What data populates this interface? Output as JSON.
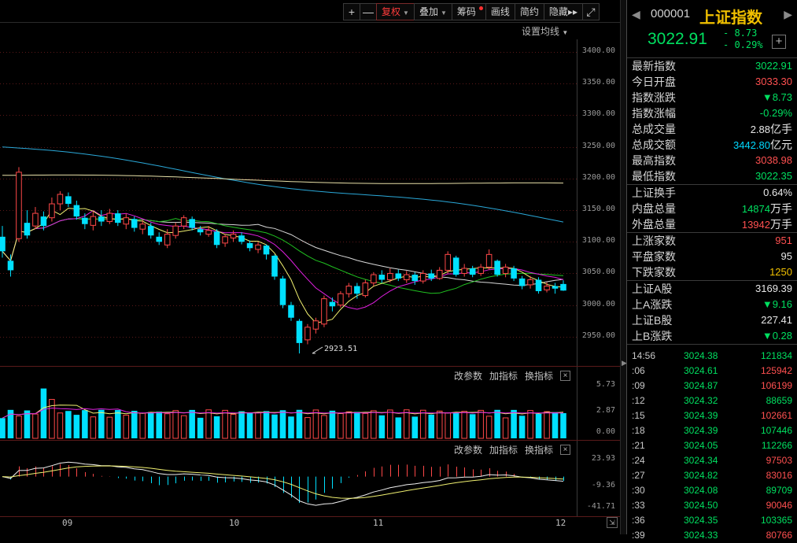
{
  "toolbar": {
    "buttons": [
      {
        "label": "+"
      },
      {
        "label": "—"
      },
      {
        "label": "复权",
        "active": true,
        "caret": true
      },
      {
        "label": "叠加",
        "caret": true
      },
      {
        "label": "筹码",
        "dot": true
      },
      {
        "label": "画线"
      },
      {
        "label": "简约"
      },
      {
        "label": "隐藏",
        "suffix": "▸▸"
      },
      {
        "label": "⤢"
      }
    ]
  },
  "ma_setting_label": "设置均线",
  "panel_tools": {
    "params": "改参数",
    "add_indicator": "加指标",
    "switch_indicator": "换指标",
    "close": "×"
  },
  "price_axis": [
    "3400.00",
    "3350.00",
    "3300.00",
    "3250.00",
    "3200.00",
    "3150.00",
    "3100.00",
    "3050.00",
    "3000.00",
    "2950.00"
  ],
  "volume_axis": [
    "5.73",
    "2.87",
    "0.00"
  ],
  "macd_axis": [
    "23.93",
    "-9.36",
    "-41.71"
  ],
  "x_axis": [
    "09",
    "10",
    "11",
    "12"
  ],
  "low_marker": "2923.51",
  "colors": {
    "up": "#ff4848",
    "down": "#00e0ff",
    "bg": "#000000",
    "accent": "#f0c000",
    "green_text": "#00e060"
  },
  "quote": {
    "code": "000001",
    "name": "上证指数",
    "price": "3022.91",
    "change": "- 8.73",
    "change_pct": "- 0.29%",
    "add_label": "+"
  },
  "stats_1": [
    {
      "label": "最新指数",
      "value": "3022.91",
      "cls": "g"
    },
    {
      "label": "今日开盘",
      "value": "3033.30",
      "cls": "r"
    },
    {
      "label": "指数涨跌",
      "value": "▼8.73",
      "cls": "g"
    },
    {
      "label": "指数涨幅",
      "value": "-0.29%",
      "cls": "g"
    },
    {
      "label": "总成交量",
      "value": "2.88",
      "unit": "亿手",
      "cls": "w"
    },
    {
      "label": "总成交额",
      "value": "3442.80",
      "unit": "亿元",
      "cls": "c"
    },
    {
      "label": "最高指数",
      "value": "3038.98",
      "cls": "r"
    },
    {
      "label": "最低指数",
      "value": "3022.35",
      "cls": "g"
    }
  ],
  "stats_2": [
    {
      "label": "上证换手",
      "value": "0.64%",
      "cls": "w"
    },
    {
      "label": "内盘总量",
      "value": "14874",
      "unit": "万手",
      "cls": "g"
    },
    {
      "label": "外盘总量",
      "value": "13942",
      "unit": "万手",
      "cls": "r"
    }
  ],
  "stats_3": [
    {
      "label": "上涨家数",
      "value": "951",
      "cls": "r"
    },
    {
      "label": "平盘家数",
      "value": "95",
      "cls": "w"
    },
    {
      "label": "下跌家数",
      "value": "1250",
      "cls": "y"
    }
  ],
  "stats_4": [
    {
      "label": "上证A股",
      "value": "3169.39",
      "cls": "w"
    },
    {
      "label": "上A涨跌",
      "value": "▼9.16",
      "cls": "g"
    },
    {
      "label": "上证B股",
      "value": "227.41",
      "cls": "w"
    },
    {
      "label": "上B涨跌",
      "value": "▼0.28",
      "cls": "g"
    }
  ],
  "ticks": [
    {
      "time": "14:56",
      "price": "3024.38",
      "vol": "121834",
      "cls": "g"
    },
    {
      "time": ":06",
      "price": "3024.61",
      "vol": "125942",
      "cls": "r"
    },
    {
      "time": ":09",
      "price": "3024.87",
      "vol": "106199",
      "cls": "r"
    },
    {
      "time": ":12",
      "price": "3024.32",
      "vol": "88659",
      "cls": "g"
    },
    {
      "time": ":15",
      "price": "3024.39",
      "vol": "102661",
      "cls": "r"
    },
    {
      "time": ":18",
      "price": "3024.39",
      "vol": "107446",
      "cls": "g"
    },
    {
      "time": ":21",
      "price": "3024.05",
      "vol": "112266",
      "cls": "g"
    },
    {
      "time": ":24",
      "price": "3024.34",
      "vol": "97503",
      "cls": "r"
    },
    {
      "time": ":27",
      "price": "3024.82",
      "vol": "83016",
      "cls": "r"
    },
    {
      "time": ":30",
      "price": "3024.08",
      "vol": "89709",
      "cls": "g"
    },
    {
      "time": ":33",
      "price": "3024.50",
      "vol": "90046",
      "cls": "r"
    },
    {
      "time": ":36",
      "price": "3024.35",
      "vol": "103365",
      "cls": "g"
    },
    {
      "time": ":39",
      "price": "3024.33",
      "vol": "80766",
      "cls": "r"
    }
  ],
  "chart_data": {
    "type": "candlestick",
    "price_range": [
      2910,
      3420
    ],
    "candles": [
      [
        3108,
        3085,
        3125,
        3075
      ],
      [
        3070,
        3055,
        3080,
        3045
      ],
      [
        3105,
        3210,
        3218,
        3100
      ],
      [
        3130,
        3110,
        3150,
        3105
      ],
      [
        3125,
        3145,
        3155,
        3120
      ],
      [
        3140,
        3125,
        3148,
        3118
      ],
      [
        3138,
        3160,
        3170,
        3132
      ],
      [
        3160,
        3175,
        3180,
        3150
      ],
      [
        3172,
        3160,
        3178,
        3155
      ],
      [
        3158,
        3140,
        3165,
        3135
      ],
      [
        3138,
        3128,
        3145,
        3120
      ],
      [
        3126,
        3140,
        3148,
        3118
      ],
      [
        3140,
        3132,
        3150,
        3125
      ],
      [
        3132,
        3145,
        3152,
        3128
      ],
      [
        3145,
        3130,
        3150,
        3125
      ],
      [
        3128,
        3138,
        3145,
        3120
      ],
      [
        3136,
        3122,
        3140,
        3116
      ],
      [
        3120,
        3128,
        3135,
        3112
      ],
      [
        3125,
        3110,
        3130,
        3105
      ],
      [
        3108,
        3100,
        3115,
        3095
      ],
      [
        3095,
        3112,
        3120,
        3090
      ],
      [
        3110,
        3125,
        3130,
        3105
      ],
      [
        3125,
        3138,
        3142,
        3120
      ],
      [
        3136,
        3122,
        3140,
        3118
      ],
      [
        3120,
        3115,
        3125,
        3110
      ],
      [
        3112,
        3118,
        3125,
        3108
      ],
      [
        3116,
        3095,
        3120,
        3090
      ],
      [
        3098,
        3108,
        3112,
        3092
      ],
      [
        3106,
        3112,
        3118,
        3100
      ],
      [
        3110,
        3100,
        3115,
        3096
      ],
      [
        3098,
        3090,
        3102,
        3085
      ],
      [
        3088,
        3095,
        3100,
        3082
      ],
      [
        3094,
        3080,
        3096,
        3072
      ],
      [
        3078,
        3045,
        3080,
        3040
      ],
      [
        3042,
        3000,
        3046,
        2995
      ],
      [
        3000,
        2980,
        3005,
        2975
      ],
      [
        2975,
        2940,
        2978,
        2923.51
      ],
      [
        2945,
        2965,
        2970,
        2938
      ],
      [
        2962,
        2975,
        2980,
        2955
      ],
      [
        2970,
        3010,
        3015,
        2965
      ],
      [
        3005,
        2998,
        3012,
        2990
      ],
      [
        3000,
        3018,
        3022,
        2996
      ],
      [
        3018,
        3030,
        3035,
        3012
      ],
      [
        3030,
        3018,
        3035,
        3010
      ],
      [
        3015,
        3035,
        3040,
        3012
      ],
      [
        3035,
        3048,
        3052,
        3030
      ],
      [
        3048,
        3040,
        3055,
        3035
      ],
      [
        3040,
        3050,
        3058,
        3036
      ],
      [
        3050,
        3042,
        3056,
        3038
      ],
      [
        3040,
        3048,
        3054,
        3035
      ],
      [
        3048,
        3038,
        3052,
        3032
      ],
      [
        3038,
        3050,
        3055,
        3034
      ],
      [
        3050,
        3042,
        3056,
        3038
      ],
      [
        3042,
        3055,
        3060,
        3040
      ],
      [
        3055,
        3080,
        3085,
        3050
      ],
      [
        3075,
        3048,
        3078,
        3045
      ],
      [
        3050,
        3058,
        3065,
        3045
      ],
      [
        3058,
        3048,
        3062,
        3044
      ],
      [
        3050,
        3060,
        3065,
        3046
      ],
      [
        3060,
        3080,
        3088,
        3056
      ],
      [
        3070,
        3048,
        3072,
        3045
      ],
      [
        3050,
        3060,
        3065,
        3044
      ],
      [
        3058,
        3042,
        3062,
        3038
      ],
      [
        3042,
        3030,
        3046,
        3025
      ],
      [
        3032,
        3040,
        3046,
        3026
      ],
      [
        3040,
        3022,
        3044,
        3018
      ],
      [
        3024,
        3030,
        3036,
        3020
      ],
      [
        3030,
        3026,
        3035,
        3018
      ],
      [
        3033.3,
        3022.91,
        3038.98,
        3022.35
      ]
    ],
    "volume_range": [
      0,
      5.73
    ],
    "macd_range": [
      -41.71,
      23.93
    ]
  }
}
